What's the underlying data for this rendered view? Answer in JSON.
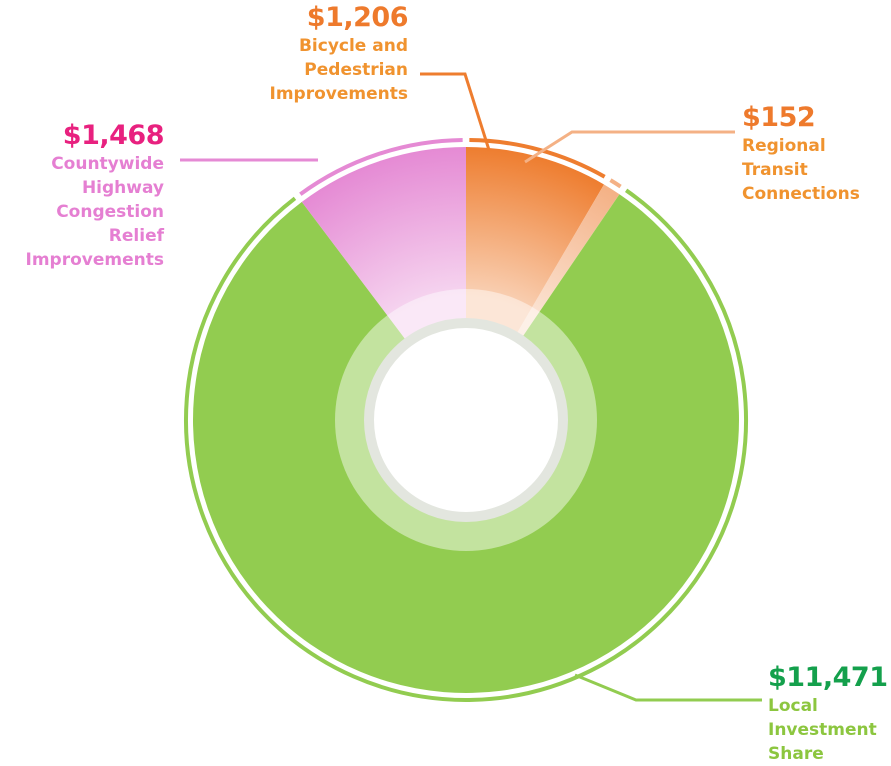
{
  "chart_data": {
    "type": "donut",
    "categories": [
      "Bicycle and Pedestrian Improvements",
      "Regional Transit Connections",
      "Local Investment Share",
      "Countywide Highway Congestion Relief Improvements"
    ],
    "values": [
      1206,
      152,
      11471,
      1468
    ],
    "value_labels": [
      "$1,206",
      "$152",
      "$11,471",
      "$1,468"
    ],
    "colors": [
      "#ee7d2f",
      "#f4b185",
      "#92cc50",
      "#e58ad4"
    ],
    "value_label_colors": [
      "#ee7a2c",
      "#ee7a2c",
      "#14a04c",
      "#e8217f"
    ],
    "category_label_colors": [
      "#f0932f",
      "#f0932f",
      "#8cc63f",
      "#e57fd2"
    ]
  }
}
